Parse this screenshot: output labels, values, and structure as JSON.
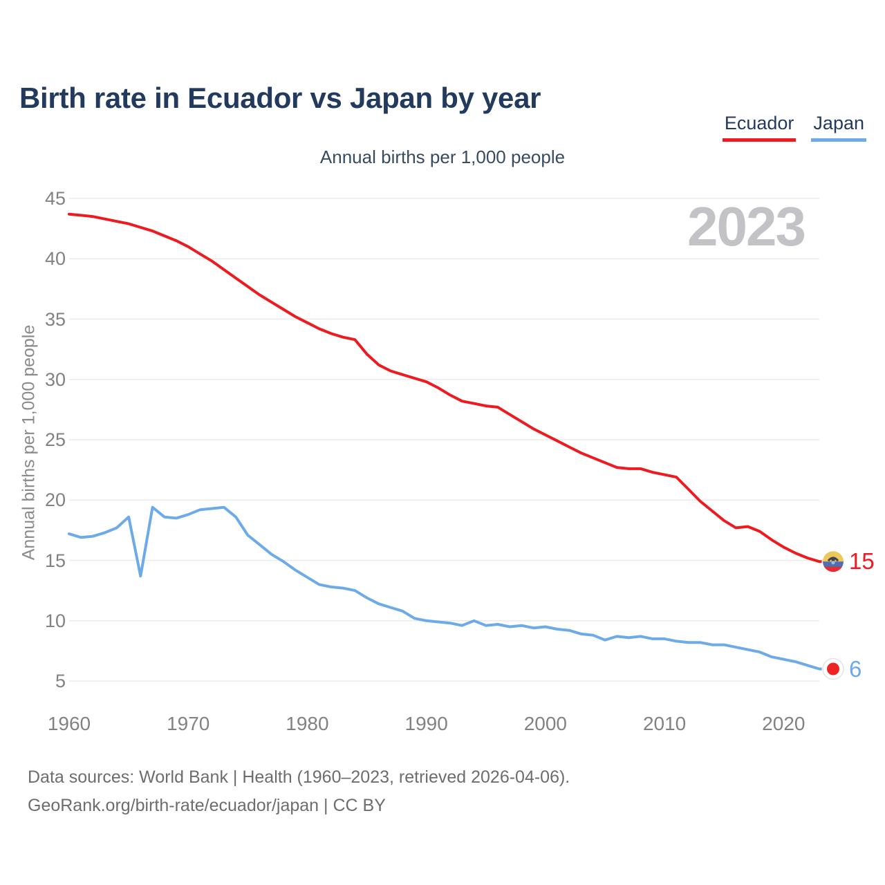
{
  "header": {
    "title": "Birth rate in Ecuador vs Japan by year"
  },
  "legend": {
    "items": [
      {
        "label": "Ecuador",
        "color": "#ee1a20"
      },
      {
        "label": "Japan",
        "color": "#6dabe8"
      }
    ]
  },
  "chart_data": {
    "type": "line",
    "subtitle": "Annual births per 1,000 people",
    "ylabel": "Annual births per 1,000 people",
    "watermark_year": "2023",
    "xlim": [
      1960,
      2023
    ],
    "ylim": [
      5,
      45
    ],
    "yticks": [
      45,
      40,
      35,
      30,
      25,
      20,
      15,
      10,
      5
    ],
    "xticks": [
      1960,
      1970,
      1980,
      1990,
      2000,
      2010,
      2020
    ],
    "grid": "horizontal",
    "legend_position": "top-right",
    "x": [
      1960,
      1961,
      1962,
      1963,
      1964,
      1965,
      1966,
      1967,
      1968,
      1969,
      1970,
      1971,
      1972,
      1973,
      1974,
      1975,
      1976,
      1977,
      1978,
      1979,
      1980,
      1981,
      1982,
      1983,
      1984,
      1985,
      1986,
      1987,
      1988,
      1989,
      1990,
      1991,
      1992,
      1993,
      1994,
      1995,
      1996,
      1997,
      1998,
      1999,
      2000,
      2001,
      2002,
      2003,
      2004,
      2005,
      2006,
      2007,
      2008,
      2009,
      2010,
      2011,
      2012,
      2013,
      2014,
      2015,
      2016,
      2017,
      2018,
      2019,
      2020,
      2021,
      2022,
      2023
    ],
    "series": [
      {
        "name": "Ecuador",
        "color": "#ee1a20",
        "end_label": "15",
        "marker": "ecuador-flag",
        "values": [
          43.7,
          43.6,
          43.5,
          43.3,
          43.1,
          42.9,
          42.6,
          42.3,
          41.9,
          41.5,
          41.0,
          40.4,
          39.8,
          39.1,
          38.4,
          37.7,
          37.0,
          36.4,
          35.8,
          35.2,
          34.7,
          34.2,
          33.8,
          33.5,
          33.3,
          32.1,
          31.2,
          30.7,
          30.4,
          30.1,
          29.8,
          29.3,
          28.7,
          28.2,
          28.0,
          27.8,
          27.7,
          27.1,
          26.5,
          25.9,
          25.4,
          24.9,
          24.4,
          23.9,
          23.5,
          23.1,
          22.7,
          22.6,
          22.6,
          22.3,
          22.1,
          21.9,
          20.9,
          19.9,
          19.1,
          18.3,
          17.7,
          17.8,
          17.4,
          16.7,
          16.1,
          15.6,
          15.2,
          14.9
        ]
      },
      {
        "name": "Japan",
        "color": "#6dabe8",
        "end_label": "6",
        "marker": "japan-flag",
        "values": [
          17.2,
          16.9,
          17.0,
          17.3,
          17.7,
          18.6,
          13.7,
          19.4,
          18.6,
          18.5,
          18.8,
          19.2,
          19.3,
          19.4,
          18.6,
          17.1,
          16.3,
          15.5,
          14.9,
          14.2,
          13.6,
          13.0,
          12.8,
          12.7,
          12.5,
          11.9,
          11.4,
          11.1,
          10.8,
          10.2,
          10.0,
          9.9,
          9.8,
          9.6,
          10.0,
          9.6,
          9.7,
          9.5,
          9.6,
          9.4,
          9.5,
          9.3,
          9.2,
          8.9,
          8.8,
          8.4,
          8.7,
          8.6,
          8.7,
          8.5,
          8.5,
          8.3,
          8.2,
          8.2,
          8.0,
          8.0,
          7.8,
          7.6,
          7.4,
          7.0,
          6.8,
          6.6,
          6.3,
          6.0
        ]
      }
    ]
  },
  "footer": {
    "line1": "Data sources: World Bank | Health (1960–2023, retrieved 2026-04-06).",
    "line2": "GeoRank.org/birth-rate/ecuador/japan | CC BY"
  }
}
